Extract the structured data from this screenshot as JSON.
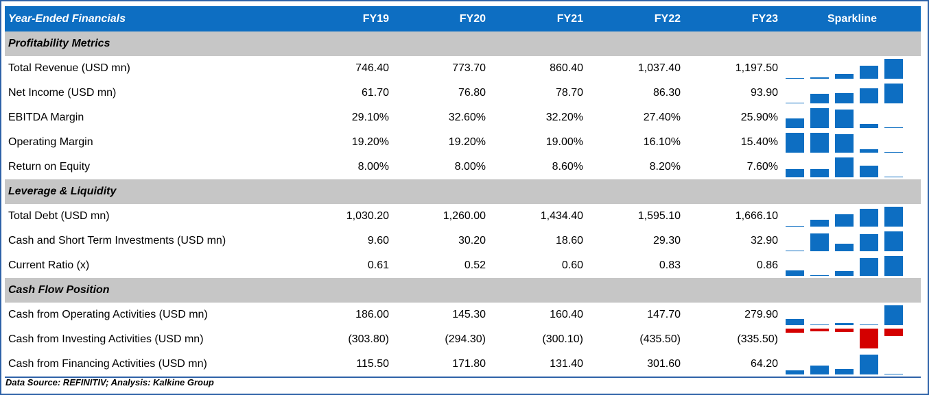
{
  "header": {
    "title": "Year-Ended Financials",
    "years": [
      "FY19",
      "FY20",
      "FY21",
      "FY22",
      "FY23"
    ],
    "sparkline_label": "Sparkline"
  },
  "sections": [
    {
      "title": "Profitability Metrics",
      "rows": [
        {
          "label": "Total Revenue (USD mn)",
          "values": [
            "746.40",
            "773.70",
            "860.40",
            "1,037.40",
            "1,197.50"
          ],
          "numbers": [
            746.4,
            773.7,
            860.4,
            1037.4,
            1197.5
          ]
        },
        {
          "label": "Net Income (USD mn)",
          "values": [
            "61.70",
            "76.80",
            "78.70",
            "86.30",
            "93.90"
          ],
          "numbers": [
            61.7,
            76.8,
            78.7,
            86.3,
            93.9
          ]
        },
        {
          "label": "EBITDA Margin",
          "values": [
            "29.10%",
            "32.60%",
            "32.20%",
            "27.40%",
            "25.90%"
          ],
          "numbers": [
            29.1,
            32.6,
            32.2,
            27.4,
            25.9
          ]
        },
        {
          "label": "Operating Margin",
          "values": [
            "19.20%",
            "19.20%",
            "19.00%",
            "16.10%",
            "15.40%"
          ],
          "numbers": [
            19.2,
            19.2,
            19.0,
            16.1,
            15.4
          ]
        },
        {
          "label": "Return on Equity",
          "values": [
            "8.00%",
            "8.00%",
            "8.60%",
            "8.20%",
            "7.60%"
          ],
          "numbers": [
            8.0,
            8.0,
            8.6,
            8.2,
            7.6
          ]
        }
      ]
    },
    {
      "title": "Leverage & Liquidity",
      "rows": [
        {
          "label": "Total Debt (USD mn)",
          "values": [
            "1,030.20",
            "1,260.00",
            "1,434.40",
            "1,595.10",
            "1,666.10"
          ],
          "numbers": [
            1030.2,
            1260.0,
            1434.4,
            1595.1,
            1666.1
          ]
        },
        {
          "label": "Cash and Short Term Investments (USD mn)",
          "values": [
            "9.60",
            "30.20",
            "18.60",
            "29.30",
            "32.90"
          ],
          "numbers": [
            9.6,
            30.2,
            18.6,
            29.3,
            32.9
          ]
        },
        {
          "label": "Current Ratio (x)",
          "values": [
            "0.61",
            "0.52",
            "0.60",
            "0.83",
            "0.86"
          ],
          "numbers": [
            0.61,
            0.52,
            0.6,
            0.83,
            0.86
          ]
        }
      ]
    },
    {
      "title": "Cash Flow Position",
      "rows": [
        {
          "label": "Cash from Operating Activities (USD mn)",
          "values": [
            "186.00",
            "145.30",
            "160.40",
            "147.70",
            "279.90"
          ],
          "numbers": [
            186.0,
            145.3,
            160.4,
            147.7,
            279.9
          ]
        },
        {
          "label": "Cash from Investing Activities (USD mn)",
          "values": [
            "(303.80)",
            "(294.30)",
            "(300.10)",
            "(435.50)",
            "(335.50)"
          ],
          "numbers": [
            -303.8,
            -294.3,
            -300.1,
            -435.5,
            -335.5
          ]
        },
        {
          "label": "Cash from Financing Activities (USD mn)",
          "values": [
            "115.50",
            "171.80",
            "131.40",
            "301.60",
            "64.20"
          ],
          "numbers": [
            115.5,
            171.8,
            131.4,
            301.6,
            64.2
          ]
        }
      ]
    }
  ],
  "footer": {
    "source": "Data Source: REFINITIV; Analysis: Kalkine Group"
  },
  "colors": {
    "header_bg": "#0d6ec2",
    "section_bg": "#c6c6c6",
    "spark_positive": "#0d6ec2",
    "spark_negative": "#d40000",
    "border": "#2e62a8"
  }
}
